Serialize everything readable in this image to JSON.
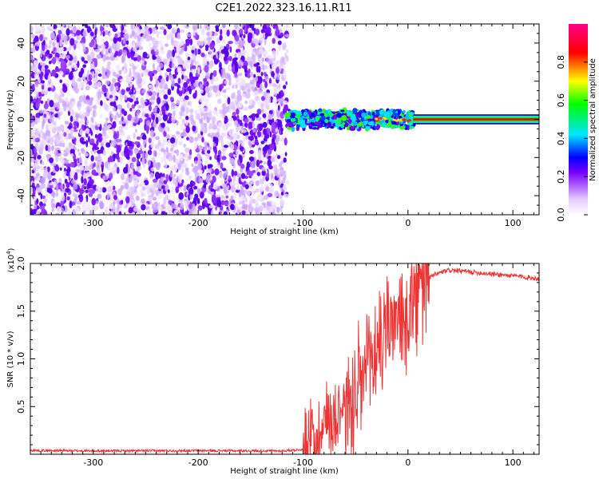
{
  "title": "C2E1.2022.323.16.11.R11",
  "chart_data": [
    {
      "type": "heatmap",
      "xlabel": "Height of straight line (km)",
      "ylabel": "Frequency (Hz)",
      "xlim": [
        -360,
        125
      ],
      "ylim": [
        -50,
        50
      ],
      "xticks": [
        -300,
        -200,
        -100,
        0,
        100
      ],
      "yticks": [
        -40,
        -20,
        0,
        20,
        40
      ],
      "colorbar": {
        "label": "Normalized spectral amplitude",
        "range": [
          0,
          1
        ],
        "ticks": [
          0.0,
          0.2,
          0.4,
          0.6,
          0.8
        ],
        "colors": [
          "#ffffff",
          "#e6ccff",
          "#7a00ff",
          "#0000ff",
          "#00e5ff",
          "#00ff00",
          "#ffff00",
          "#ff0000",
          "#ff0088"
        ]
      },
      "regions": [
        {
          "x_range": [
            -360,
            -115
          ],
          "freq_range": [
            -50,
            50
          ],
          "amplitude": [
            0.02,
            0.3
          ]
        },
        {
          "x_range": [
            -115,
            5
          ],
          "freq_center": 0,
          "freq_halfwidth": 5,
          "amplitude": [
            0.2,
            0.9
          ]
        },
        {
          "x_range": [
            5,
            125
          ],
          "freq_center": 0,
          "freq_halfwidth": 1.5,
          "amplitude": 0.85
        }
      ]
    },
    {
      "type": "line",
      "xlabel": "Height of straight line (km)",
      "ylabel": "SNR (10 * v/v)",
      "y_multiplier": "(x10^4)",
      "xlim": [
        -360,
        125
      ],
      "ylim": [
        0,
        20000
      ],
      "xticks": [
        -300,
        -200,
        -100,
        0,
        100
      ],
      "yticks": [
        0.5,
        1.0,
        1.5,
        2.0
      ],
      "color": "#ee3333",
      "series": [
        {
          "x": [
            -360,
            -300,
            -200,
            -120,
            -100,
            -95,
            -90,
            -85,
            -80,
            -75,
            -70,
            -65,
            -60,
            -55,
            -50,
            -45,
            -40,
            -35,
            -30,
            -25,
            -20,
            -15,
            -10,
            -5,
            0,
            5,
            10,
            15,
            20,
            25,
            30,
            40,
            50,
            60,
            70,
            80,
            90,
            100,
            110,
            125
          ],
          "y": [
            400,
            350,
            380,
            350,
            500,
            1200,
            1800,
            2500,
            3000,
            4500,
            3500,
            5500,
            5000,
            6000,
            4500,
            7500,
            8500,
            10000,
            11000,
            12000,
            13500,
            14500,
            13000,
            14000,
            15000,
            15500,
            16500,
            18000,
            18500,
            18800,
            19000,
            19300,
            19200,
            19100,
            19000,
            18900,
            18800,
            18700,
            18600,
            18400
          ]
        }
      ]
    }
  ]
}
